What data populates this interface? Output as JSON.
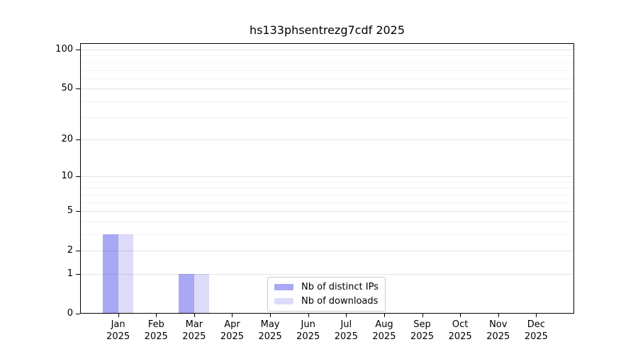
{
  "chart_data": {
    "type": "bar",
    "title": "hs133phsentrezg7cdf 2025",
    "categories": [
      "Jan",
      "Feb",
      "Mar",
      "Apr",
      "May",
      "Jun",
      "Jul",
      "Aug",
      "Sep",
      "Oct",
      "Nov",
      "Dec"
    ],
    "category_year": "2025",
    "series": [
      {
        "name": "Nb of distinct IPs",
        "color": "#a8a8f4",
        "values": [
          3,
          0,
          1,
          0,
          0,
          0,
          0,
          0,
          0,
          0,
          0,
          0
        ]
      },
      {
        "name": "Nb of downloads",
        "color": "#dcdcfa",
        "values": [
          3,
          0,
          1,
          0,
          0,
          0,
          0,
          0,
          0,
          0,
          0,
          0
        ]
      }
    ],
    "xlabel": "",
    "ylabel": "",
    "yscale": "log1p",
    "ylim": [
      0,
      100
    ],
    "yticks": [
      0,
      1,
      2,
      5,
      10,
      20,
      50,
      100
    ],
    "yticks_minor": [
      3,
      4,
      6,
      7,
      8,
      9,
      30,
      40,
      60,
      70,
      80,
      90
    ],
    "grid": "horizontal",
    "legend_position": "bottom-center"
  }
}
